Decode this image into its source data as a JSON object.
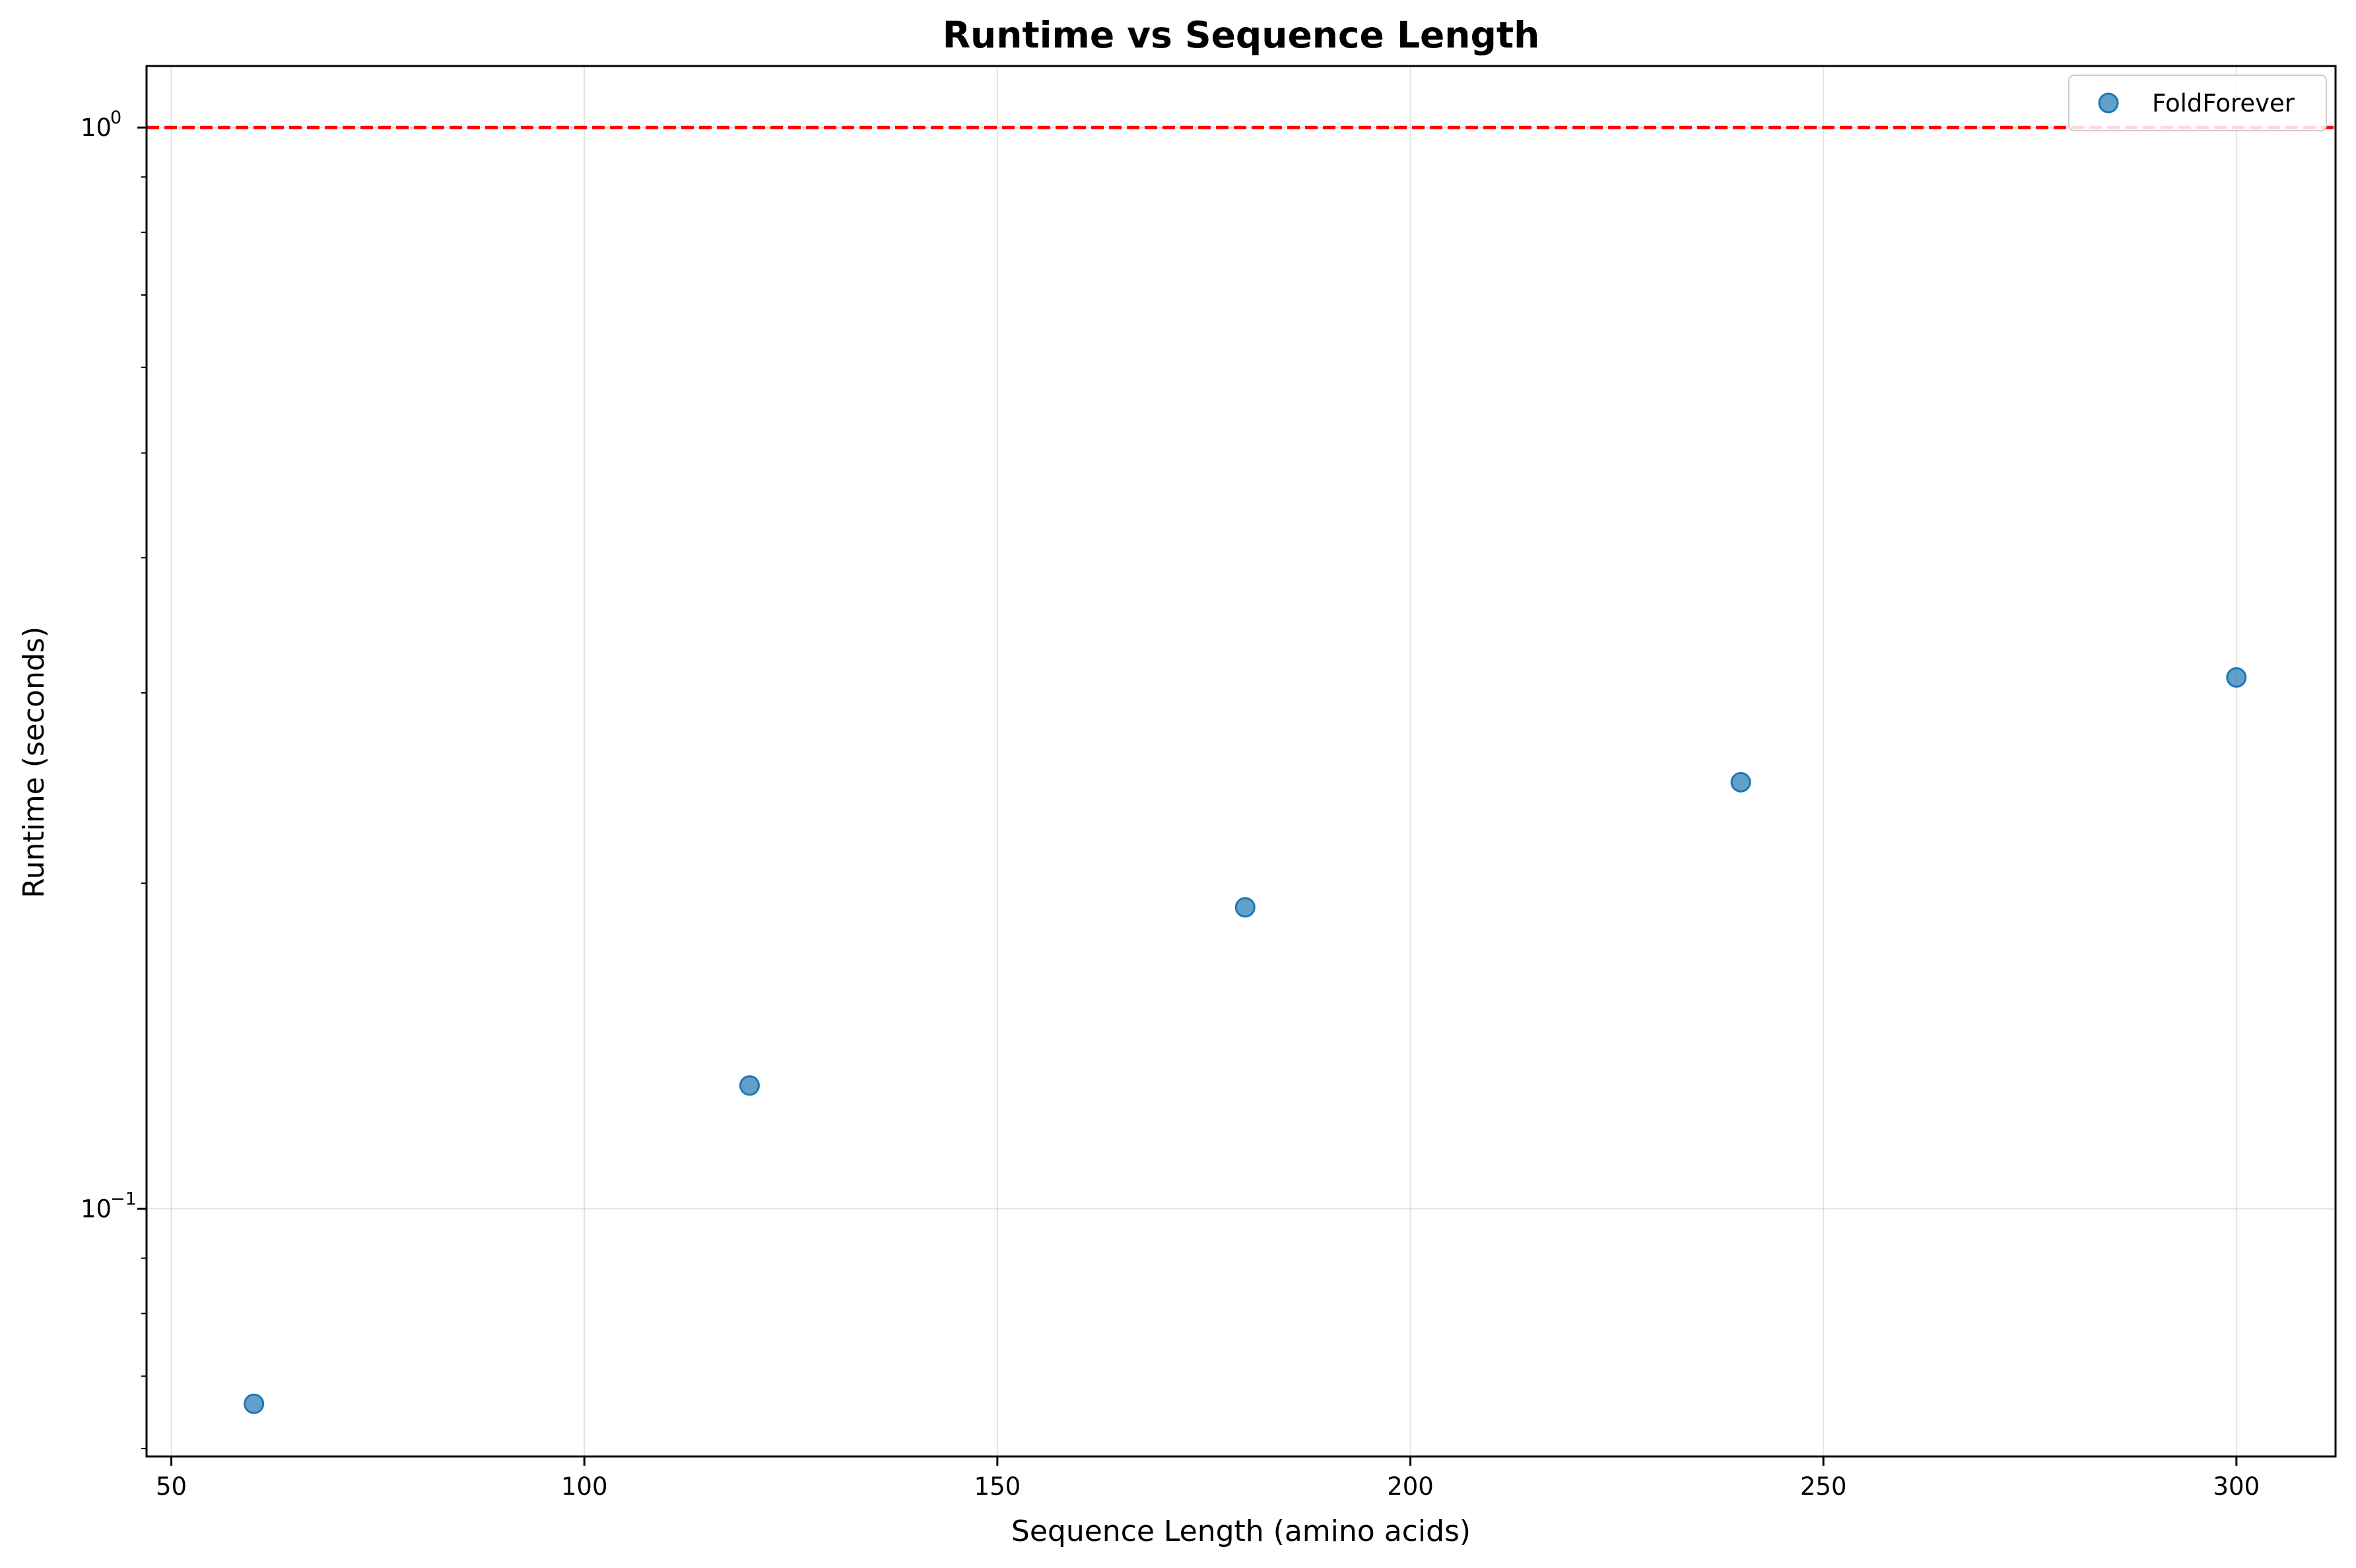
{
  "chart_data": {
    "type": "scatter",
    "title": "Runtime vs Sequence Length",
    "xlabel": "Sequence Length (amino acids)",
    "ylabel": "Runtime (seconds)",
    "xlim": [
      47,
      312
    ],
    "ylim": [
      0.059,
      1.14
    ],
    "yscale": "log",
    "grid": true,
    "legend_position": "top-right",
    "x_ticks": [
      50,
      100,
      150,
      200,
      250,
      300
    ],
    "y_ticks": [
      {
        "value": 0.1,
        "base": "10",
        "exp": "−1"
      },
      {
        "value": 1,
        "base": "10",
        "exp": "0"
      }
    ],
    "series": [
      {
        "name": "FoldForever",
        "color": "#1f77b4",
        "points": [
          {
            "x": 60,
            "y": 0.066
          },
          {
            "x": 120,
            "y": 0.13
          },
          {
            "x": 180,
            "y": 0.19
          },
          {
            "x": 240,
            "y": 0.248
          },
          {
            "x": 300,
            "y": 0.31
          }
        ]
      }
    ],
    "reference_line": {
      "y": 1.0,
      "color": "#ff0000",
      "style": "dashed"
    }
  }
}
